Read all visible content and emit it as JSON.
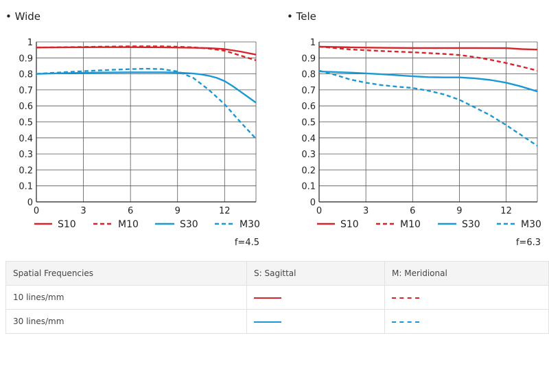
{
  "colors": {
    "red": "#d7262b",
    "blue": "#1a98d5"
  },
  "chart_data": [
    {
      "type": "line",
      "title": "• Wide",
      "aperture": "f=4.5",
      "xlim": [
        0,
        14
      ],
      "ylim": [
        0,
        1
      ],
      "xticks": [
        "0",
        "3",
        "6",
        "9",
        "12"
      ],
      "yticks": [
        "0",
        "0.1",
        "0.2",
        "0.3",
        "0.4",
        "0.5",
        "0.6",
        "0.7",
        "0.8",
        "0.9",
        "1"
      ],
      "grid": true,
      "legend_position": "bottom",
      "series": [
        {
          "name": "S10",
          "color": "red",
          "dash": false,
          "x": [
            0,
            2,
            4,
            6,
            8,
            10,
            11,
            12,
            13,
            14
          ],
          "y": [
            0.965,
            0.966,
            0.967,
            0.967,
            0.966,
            0.963,
            0.961,
            0.955,
            0.94,
            0.92
          ]
        },
        {
          "name": "M10",
          "color": "red",
          "dash": true,
          "x": [
            0,
            2,
            4,
            6,
            8,
            9,
            10,
            11,
            12,
            13,
            14
          ],
          "y": [
            0.965,
            0.967,
            0.97,
            0.972,
            0.972,
            0.97,
            0.966,
            0.958,
            0.945,
            0.915,
            0.885
          ]
        },
        {
          "name": "S30",
          "color": "blue",
          "dash": false,
          "x": [
            0,
            2,
            4,
            6,
            8,
            9,
            10,
            10.5,
            11,
            11.5,
            12,
            12.5,
            13,
            13.5,
            14
          ],
          "y": [
            0.8,
            0.805,
            0.808,
            0.81,
            0.81,
            0.808,
            0.802,
            0.797,
            0.788,
            0.775,
            0.755,
            0.725,
            0.69,
            0.655,
            0.62
          ]
        },
        {
          "name": "M30",
          "color": "blue",
          "dash": true,
          "x": [
            0,
            2,
            4,
            6,
            7,
            8,
            9,
            10,
            11,
            12,
            13,
            14
          ],
          "y": [
            0.8,
            0.812,
            0.822,
            0.83,
            0.832,
            0.83,
            0.815,
            0.775,
            0.7,
            0.61,
            0.5,
            0.395
          ]
        }
      ]
    },
    {
      "type": "line",
      "title": "• Tele",
      "aperture": "f=6.3",
      "xlim": [
        0,
        14
      ],
      "ylim": [
        0,
        1
      ],
      "xticks": [
        "0",
        "3",
        "6",
        "9",
        "12"
      ],
      "yticks": [
        "0",
        "0.1",
        "0.2",
        "0.3",
        "0.4",
        "0.5",
        "0.6",
        "0.7",
        "0.8",
        "0.9",
        "1"
      ],
      "grid": true,
      "legend_position": "bottom",
      "series": [
        {
          "name": "S10",
          "color": "red",
          "dash": false,
          "x": [
            0,
            2,
            4,
            6,
            8,
            10,
            12,
            13,
            14
          ],
          "y": [
            0.97,
            0.966,
            0.963,
            0.962,
            0.962,
            0.962,
            0.961,
            0.955,
            0.952
          ]
        },
        {
          "name": "M10",
          "color": "red",
          "dash": true,
          "x": [
            0,
            1,
            2,
            4,
            6,
            8,
            9,
            10,
            11,
            12,
            13,
            14
          ],
          "y": [
            0.97,
            0.962,
            0.953,
            0.943,
            0.935,
            0.925,
            0.918,
            0.905,
            0.888,
            0.868,
            0.845,
            0.82
          ]
        },
        {
          "name": "S30",
          "color": "blue",
          "dash": false,
          "x": [
            0,
            2,
            4,
            6,
            7,
            8,
            9,
            10,
            11,
            12,
            13,
            14
          ],
          "y": [
            0.815,
            0.808,
            0.798,
            0.785,
            0.78,
            0.778,
            0.778,
            0.772,
            0.762,
            0.745,
            0.72,
            0.69
          ]
        },
        {
          "name": "M30",
          "color": "blue",
          "dash": true,
          "x": [
            0,
            1,
            2,
            3,
            4,
            5,
            6,
            7,
            8,
            9,
            10,
            11,
            12,
            13,
            14
          ],
          "y": [
            0.82,
            0.795,
            0.765,
            0.745,
            0.73,
            0.72,
            0.712,
            0.695,
            0.672,
            0.638,
            0.59,
            0.54,
            0.48,
            0.415,
            0.35
          ]
        }
      ]
    }
  ],
  "table": {
    "headers": [
      "Spatial Frequencies",
      "S: Sagittal",
      "M: Meridional"
    ],
    "rows": [
      "10 lines/mm",
      "30 lines/mm"
    ]
  }
}
